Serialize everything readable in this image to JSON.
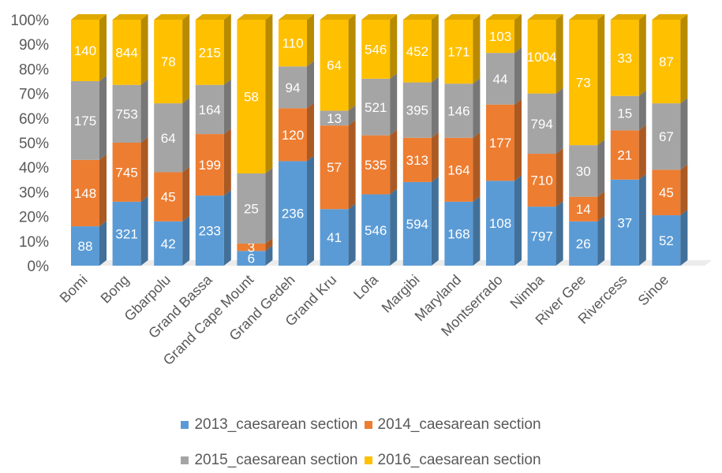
{
  "chart_data": {
    "type": "bar",
    "stacked": "percent",
    "three_d": true,
    "title": "",
    "xlabel": "",
    "ylabel": "",
    "ylim": [
      0,
      100
    ],
    "y_ticks": [
      "0%",
      "10%",
      "20%",
      "30%",
      "40%",
      "50%",
      "60%",
      "70%",
      "80%",
      "90%",
      "100%"
    ],
    "grid": false,
    "legend_position": "bottom",
    "categories": [
      "Bomi",
      "Bong",
      "Gbarpolu",
      "Grand Bassa",
      "Grand Cape Mount",
      "Grand Gedeh",
      "Grand Kru",
      "Lofa",
      "Margibi",
      "Maryland",
      "Montserrado",
      "Nimba",
      "River Gee",
      "Rivercess",
      "Sinoe"
    ],
    "series": [
      {
        "name": "2013_caesarean section",
        "color": "#5b9bd5",
        "values": [
          16,
          26,
          18,
          28.5,
          6,
          42.5,
          23,
          29,
          34,
          26,
          34.5,
          24,
          18,
          35,
          20.5
        ],
        "labels": [
          "88",
          "321",
          "42",
          "233",
          "6",
          "236",
          "41",
          "546",
          "594",
          "168",
          "108",
          "797",
          "26",
          "37",
          "52"
        ]
      },
      {
        "name": "2014_caesarean section",
        "color": "#ed7d31",
        "values": [
          27,
          24,
          20,
          25,
          3,
          21.5,
          34,
          24,
          18,
          26,
          31,
          21.5,
          10,
          20,
          18.5
        ],
        "labels": [
          "148",
          "745",
          "45",
          "199",
          "3",
          "120",
          "57",
          "535",
          "313",
          "164",
          "177",
          "710",
          "14",
          "21",
          "45"
        ]
      },
      {
        "name": "2015_caesarean section",
        "color": "#a5a5a5",
        "values": [
          32,
          23.5,
          28,
          20,
          28.5,
          17,
          6,
          23,
          22.5,
          22,
          21,
          24.5,
          21,
          14,
          27
        ],
        "labels": [
          "175",
          "753",
          "64",
          "164",
          "25",
          "94",
          "13",
          "521",
          "395",
          "146",
          "44",
          "794",
          "30",
          "15",
          "67"
        ]
      },
      {
        "name": "2016_caesarean section",
        "color": "#ffc000",
        "values": [
          25,
          26.5,
          34,
          26.5,
          62.5,
          19,
          37,
          24,
          25.5,
          26,
          13.5,
          30,
          51,
          31,
          34
        ],
        "labels": [
          "140",
          "844",
          "78",
          "215",
          "58",
          "110",
          "64",
          "546",
          "452",
          "171",
          "103",
          "1004",
          "73",
          "33",
          "87"
        ]
      }
    ]
  }
}
